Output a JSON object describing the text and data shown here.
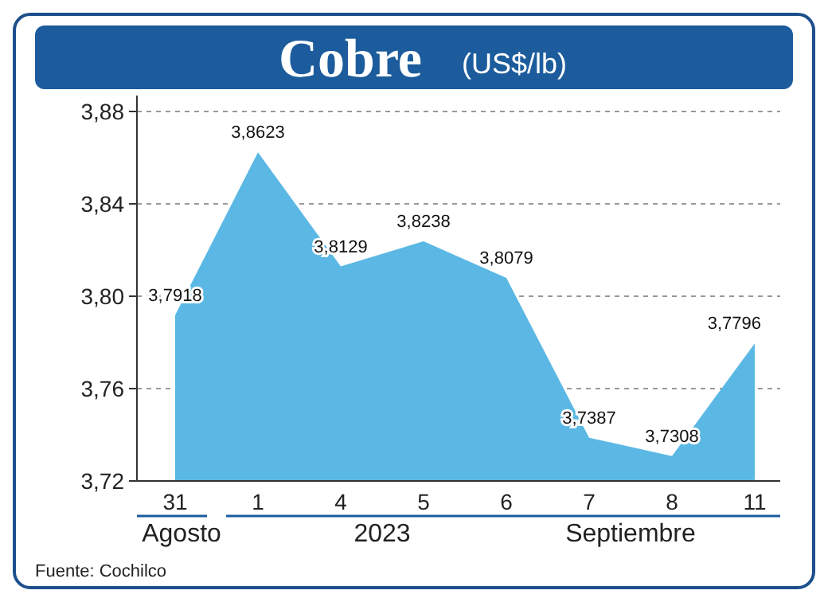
{
  "chart_data": {
    "type": "area",
    "title": "Cobre",
    "subtitle": "(US$/lb)",
    "categories": [
      "31",
      "1",
      "4",
      "5",
      "6",
      "7",
      "8",
      "11"
    ],
    "series": [
      {
        "color": "#5bb8e4",
        "values": [
          3.7918,
          3.8623,
          3.8129,
          3.8238,
          3.8079,
          3.7387,
          3.7308,
          3.7796
        ],
        "value_labels": [
          "3,7918",
          "3,8623",
          "3,8129",
          "3,8238",
          "3,8079",
          "3,7387",
          "3,7308",
          "3,7796"
        ]
      }
    ],
    "ylim": [
      3.72,
      3.88
    ],
    "yticks": [
      {
        "value": 3.72,
        "label": "3,72"
      },
      {
        "value": 3.76,
        "label": "3,76"
      },
      {
        "value": 3.8,
        "label": "3,80"
      },
      {
        "value": 3.84,
        "label": "3,84"
      },
      {
        "value": 3.88,
        "label": "3,88"
      }
    ],
    "grid": "y",
    "annotations": [
      "Agosto",
      "2023",
      "Septiembre",
      "Fuente: Cochilco"
    ]
  }
}
